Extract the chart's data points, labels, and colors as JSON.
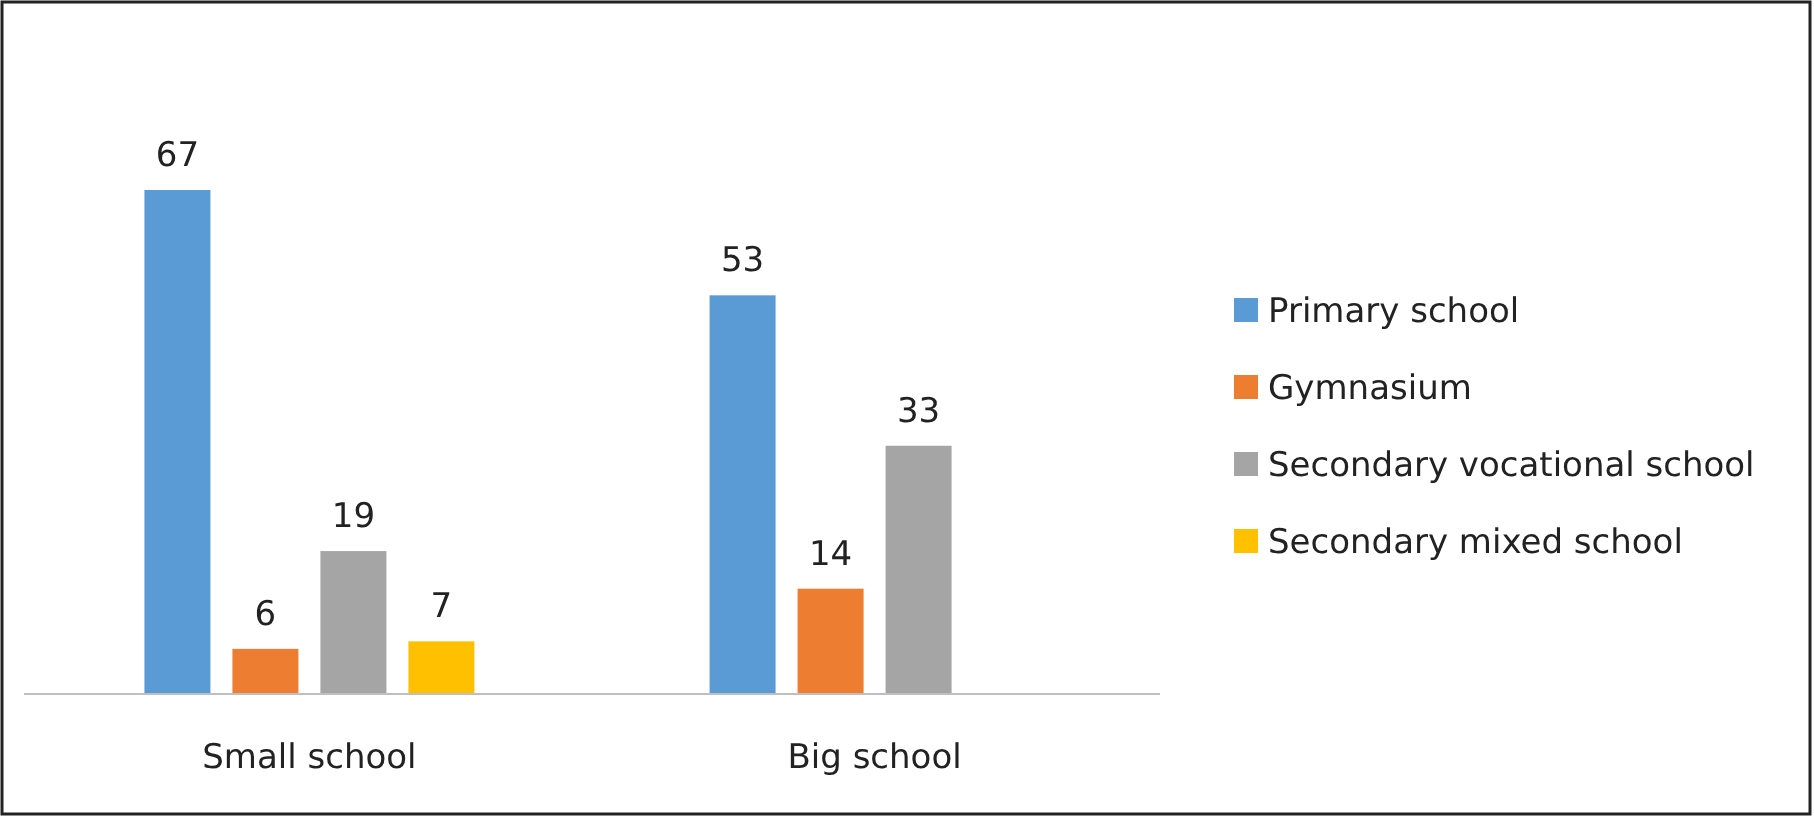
{
  "chart_data": {
    "type": "bar",
    "categories": [
      "Small school",
      "Big school"
    ],
    "series": [
      {
        "name": "Primary school",
        "color": "#5b9bd5",
        "values": [
          67,
          53
        ]
      },
      {
        "name": "Gymnasium",
        "color": "#ed7d31",
        "values": [
          6,
          14
        ]
      },
      {
        "name": "Secondary vocational school",
        "color": "#a5a5a5",
        "values": [
          19,
          33
        ]
      },
      {
        "name": "Secondary mixed school",
        "color": "#ffc000",
        "values": [
          7,
          null
        ]
      }
    ],
    "data_labels": true,
    "legend": "right"
  }
}
